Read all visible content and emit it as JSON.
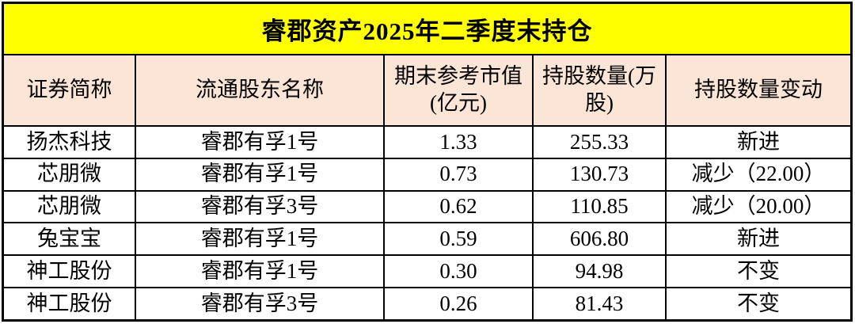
{
  "title": "睿郡资产2025年二季度末持仓",
  "colors": {
    "title_background": "#FFFF00",
    "header_background": "#FBE5D6",
    "row_background": "#FFFFFF",
    "border": "#000000",
    "text": "#000000"
  },
  "chart_data": {
    "type": "table",
    "title": "睿郡资产2025年二季度末持仓",
    "columns": [
      "证券简称",
      "流通股东名称",
      "期末参考市值(亿元)",
      "持股数量(万股)",
      "持股数量变动"
    ],
    "rows": [
      [
        "扬杰科技",
        "睿郡有孚1号",
        "1.33",
        "255.33",
        "新进"
      ],
      [
        "芯朋微",
        "睿郡有孚1号",
        "0.73",
        "130.73",
        "减少（22.00）"
      ],
      [
        "芯朋微",
        "睿郡有孚3号",
        "0.62",
        "110.85",
        "减少（20.00）"
      ],
      [
        "兔宝宝",
        "睿郡有孚1号",
        "0.59",
        "606.80",
        "新进"
      ],
      [
        "神工股份",
        "睿郡有孚1号",
        "0.30",
        "94.98",
        "不变"
      ],
      [
        "神工股份",
        "睿郡有孚3号",
        "0.26",
        "81.43",
        "不变"
      ]
    ]
  }
}
